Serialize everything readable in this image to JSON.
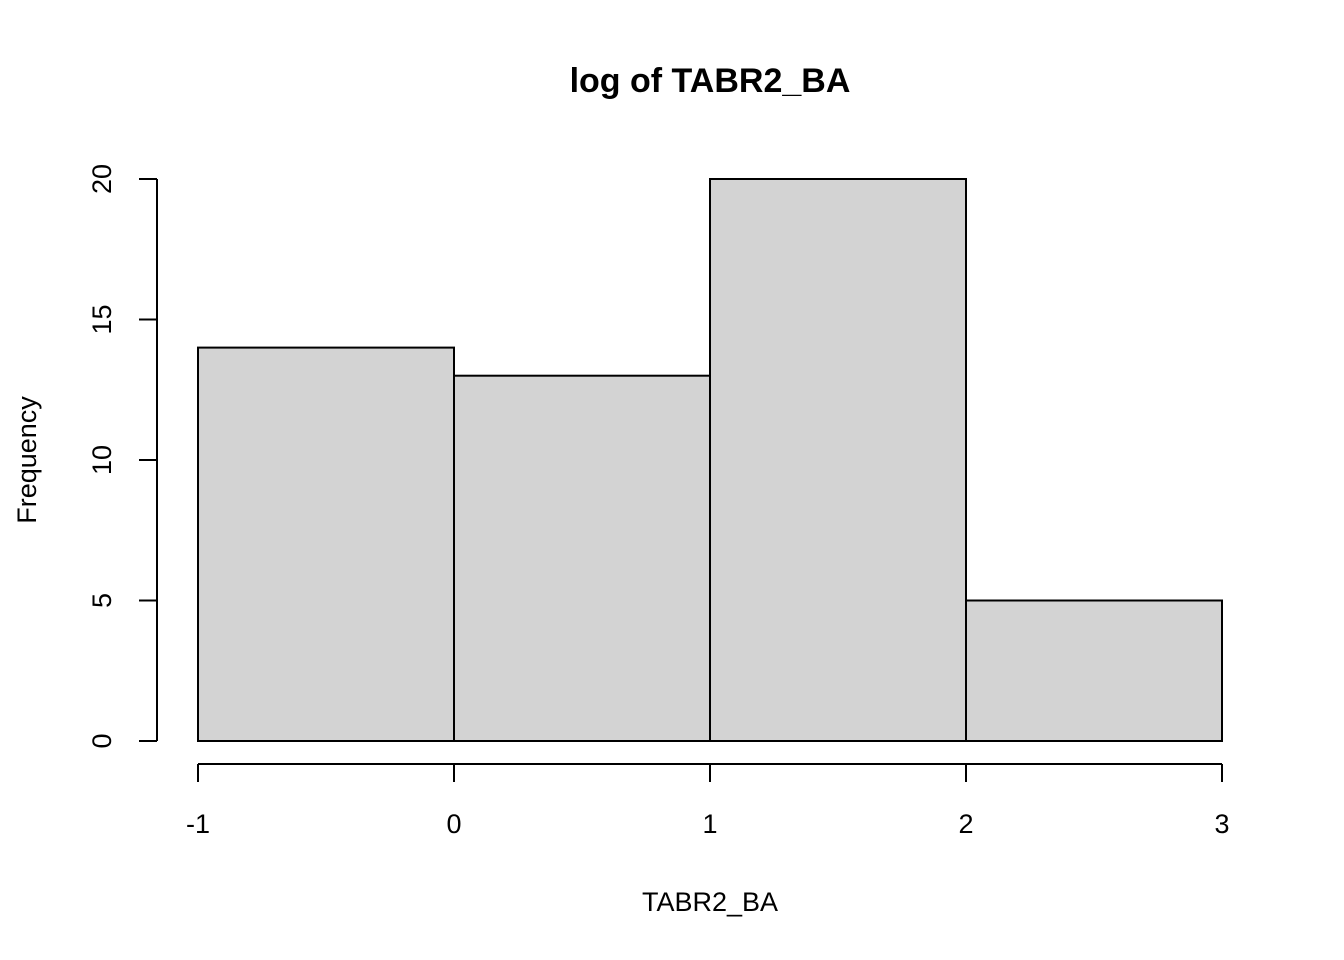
{
  "chart_data": {
    "type": "bar",
    "title": "log of TABR2_BA",
    "xlabel": "TABR2_BA",
    "ylabel": "Frequency",
    "bins": [
      {
        "from": -1,
        "to": 0,
        "count": 14
      },
      {
        "from": 0,
        "to": 1,
        "count": 13
      },
      {
        "from": 1,
        "to": 2,
        "count": 20
      },
      {
        "from": 2,
        "to": 3,
        "count": 5
      }
    ],
    "x_ticks": [
      -1,
      0,
      1,
      2,
      3
    ],
    "y_ticks": [
      0,
      5,
      10,
      15,
      20
    ],
    "xlim": [
      -1,
      3
    ],
    "ylim": [
      0,
      20
    ],
    "bar_color": "#d3d3d3",
    "border_color": "#000000",
    "grid": false
  }
}
